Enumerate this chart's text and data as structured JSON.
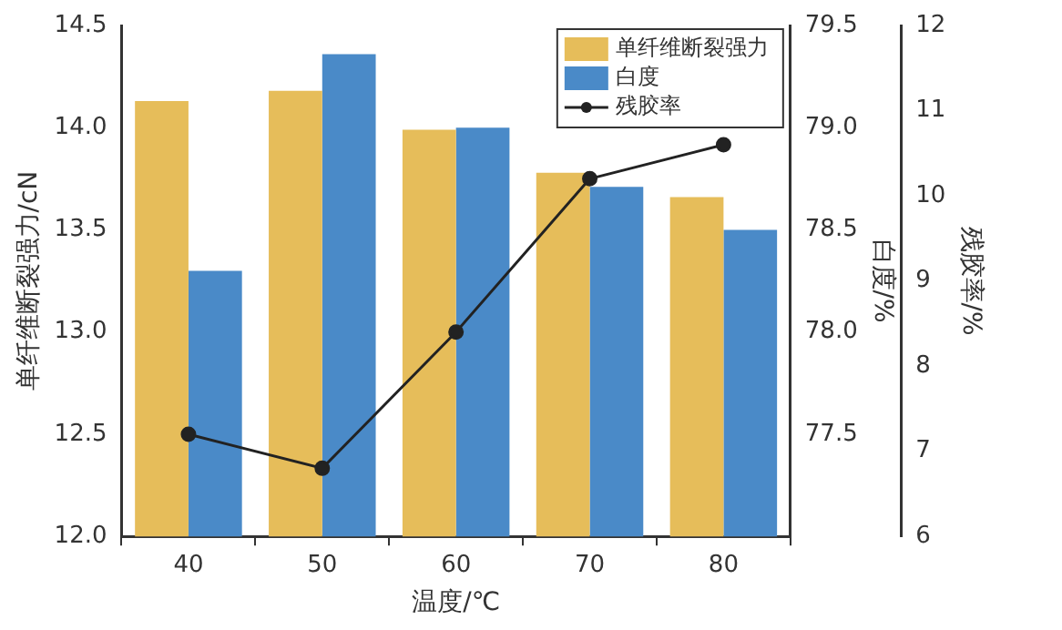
{
  "chart_data": {
    "type": "bar",
    "xlabel": "温度/℃",
    "ylabel": "单纤维断裂强力/cN",
    "y2label": "白度/%",
    "y3label": "残胶率/%",
    "categories": [
      "40",
      "50",
      "60",
      "70",
      "80"
    ],
    "series": [
      {
        "name": "单纤维断裂强力",
        "color": "#e6bd5a",
        "values": [
          14.13,
          14.18,
          13.99,
          13.78,
          13.66
        ]
      },
      {
        "name": "白度",
        "color": "#4a8ac8",
        "axis": "y2",
        "values": [
          78.3,
          79.36,
          79.0,
          78.71,
          78.5
        ]
      },
      {
        "name": "残胶率",
        "type": "line",
        "color": "#222222",
        "axis": "y3",
        "marker": "circle",
        "values": [
          7.2,
          6.8,
          8.4,
          10.2,
          10.6
        ]
      }
    ],
    "ylim": [
      12.0,
      14.5
    ],
    "yticks": [
      {
        "value": 12,
        "label": "12.0"
      },
      12.5,
      {
        "value": 13,
        "label": "13.0"
      },
      13.5,
      {
        "value": 14,
        "label": "14.0"
      },
      14.5
    ],
    "y2lim": [
      77.0,
      79.5
    ],
    "y2ticks": [
      77.5,
      {
        "value": 78,
        "label": "78.0"
      },
      78.5,
      {
        "value": 79,
        "label": "79.0"
      },
      79.5
    ],
    "y3lim": [
      6,
      12
    ],
    "y3ticks": [
      6,
      7,
      8,
      9,
      10,
      11,
      12
    ],
    "grid": false,
    "legend": "top right"
  }
}
